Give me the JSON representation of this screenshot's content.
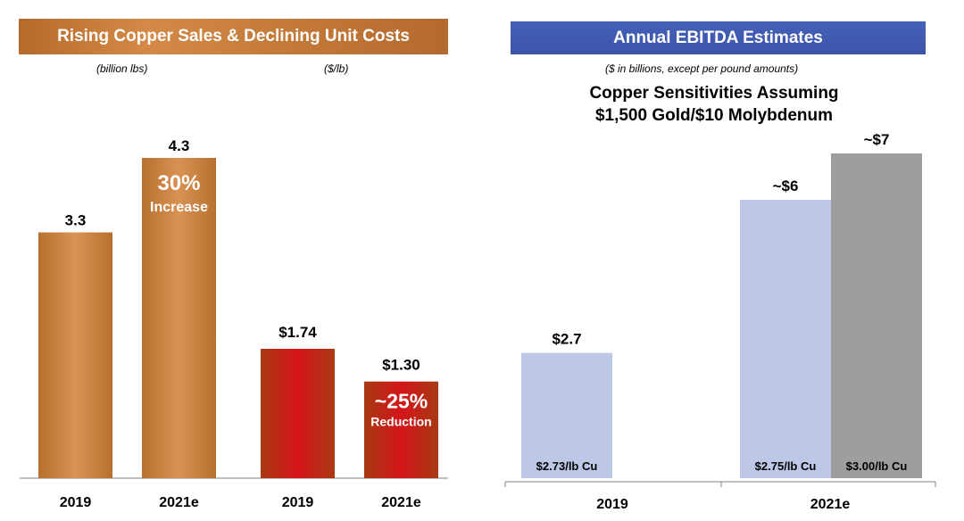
{
  "left_panel": {
    "banner": "Rising Copper Sales & Declining Unit Costs",
    "unit_sales": "(billion lbs)",
    "unit_cost": "($/lb)"
  },
  "right_panel": {
    "banner": "Annual EBITDA Estimates",
    "unit": "($ in billions, except per pound amounts)",
    "title_line1": "Copper Sensitivities Assuming",
    "title_line2": "$1,500 Gold/$10 Molybdenum"
  },
  "chart_data": [
    {
      "type": "bar",
      "categories": [
        "2019",
        "2021e"
      ],
      "values": [
        3.3,
        4.3
      ],
      "value_labels": [
        "3.3",
        "4.3"
      ],
      "annotation": {
        "big": "30%",
        "small": "Increase"
      },
      "colors": [
        "#c8803e",
        "#c8803e"
      ]
    },
    {
      "type": "bar",
      "categories": [
        "2019",
        "2021e"
      ],
      "values": [
        1.74,
        1.3
      ],
      "value_labels": [
        "$1.74",
        "$1.30"
      ],
      "annotation": {
        "big": "~25%",
        "small": "Reduction"
      },
      "colors": [
        "#c0141a",
        "#c0141a"
      ]
    },
    {
      "type": "bar",
      "categories": [
        "2019",
        "2021e"
      ],
      "series_bars": [
        {
          "category": "2019",
          "value": 2.7,
          "value_label": "$2.7",
          "inner_label": "$2.73/lb Cu",
          "color": "#bcc8e6"
        },
        {
          "category": "2021e",
          "value": 6,
          "value_label": "~$6",
          "inner_label": "$2.75/lb Cu",
          "color": "#bcc8e6"
        },
        {
          "category": "2021e",
          "value": 7,
          "value_label": "~$7",
          "inner_label": "$3.00/lb Cu",
          "color": "#9e9e9e"
        }
      ]
    }
  ]
}
